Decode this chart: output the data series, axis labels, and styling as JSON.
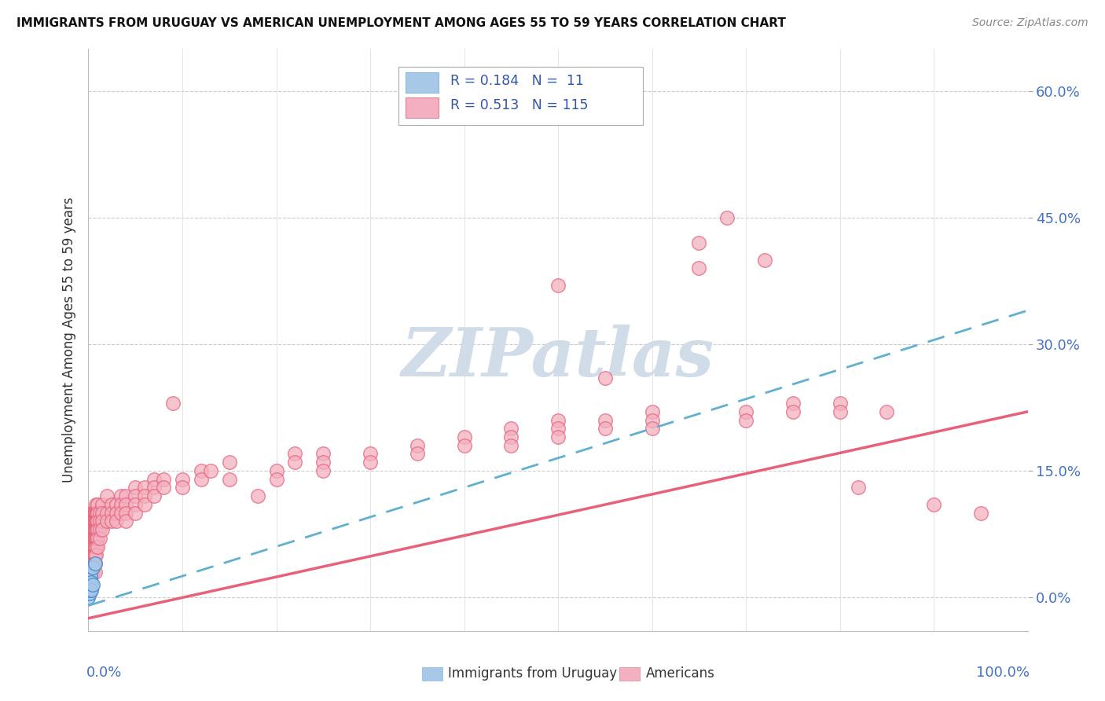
{
  "title": "IMMIGRANTS FROM URUGUAY VS AMERICAN UNEMPLOYMENT AMONG AGES 55 TO 59 YEARS CORRELATION CHART",
  "source": "Source: ZipAtlas.com",
  "ylabel": "Unemployment Among Ages 55 to 59 years",
  "ytick_values": [
    0,
    0.15,
    0.3,
    0.45,
    0.6
  ],
  "xlim": [
    0,
    1.0
  ],
  "ylim": [
    -0.04,
    0.65
  ],
  "color_uruguay": "#a8c8e8",
  "color_americans": "#f4b0c0",
  "trendline_uruguay_color": "#60b0d0",
  "trendline_americans_color": "#e8607a",
  "watermark_color": "#d0dce8",
  "scatter_uruguay": [
    [
      0.0,
      0.0
    ],
    [
      0.001,
      0.005
    ],
    [
      0.001,
      0.015
    ],
    [
      0.001,
      0.008
    ],
    [
      0.002,
      0.025
    ],
    [
      0.002,
      0.01
    ],
    [
      0.003,
      0.018
    ],
    [
      0.003,
      0.008
    ],
    [
      0.005,
      0.035
    ],
    [
      0.005,
      0.015
    ],
    [
      0.007,
      0.04
    ]
  ],
  "scatter_americans": [
    [
      0.0,
      0.09
    ],
    [
      0.001,
      0.08
    ],
    [
      0.001,
      0.07
    ],
    [
      0.001,
      0.06
    ],
    [
      0.001,
      0.05
    ],
    [
      0.001,
      0.04
    ],
    [
      0.001,
      0.03
    ],
    [
      0.001,
      0.02
    ],
    [
      0.002,
      0.09
    ],
    [
      0.002,
      0.08
    ],
    [
      0.002,
      0.07
    ],
    [
      0.002,
      0.06
    ],
    [
      0.002,
      0.05
    ],
    [
      0.002,
      0.04
    ],
    [
      0.002,
      0.03
    ],
    [
      0.003,
      0.1
    ],
    [
      0.003,
      0.09
    ],
    [
      0.003,
      0.08
    ],
    [
      0.003,
      0.07
    ],
    [
      0.003,
      0.06
    ],
    [
      0.003,
      0.05
    ],
    [
      0.003,
      0.04
    ],
    [
      0.003,
      0.03
    ],
    [
      0.004,
      0.09
    ],
    [
      0.004,
      0.08
    ],
    [
      0.004,
      0.07
    ],
    [
      0.004,
      0.06
    ],
    [
      0.004,
      0.05
    ],
    [
      0.004,
      0.04
    ],
    [
      0.005,
      0.1
    ],
    [
      0.005,
      0.09
    ],
    [
      0.005,
      0.08
    ],
    [
      0.005,
      0.07
    ],
    [
      0.005,
      0.06
    ],
    [
      0.005,
      0.05
    ],
    [
      0.005,
      0.04
    ],
    [
      0.005,
      0.03
    ],
    [
      0.006,
      0.1
    ],
    [
      0.006,
      0.09
    ],
    [
      0.006,
      0.08
    ],
    [
      0.006,
      0.07
    ],
    [
      0.006,
      0.06
    ],
    [
      0.006,
      0.05
    ],
    [
      0.006,
      0.04
    ],
    [
      0.007,
      0.1
    ],
    [
      0.007,
      0.09
    ],
    [
      0.007,
      0.08
    ],
    [
      0.007,
      0.07
    ],
    [
      0.007,
      0.06
    ],
    [
      0.007,
      0.05
    ],
    [
      0.007,
      0.04
    ],
    [
      0.007,
      0.03
    ],
    [
      0.008,
      0.11
    ],
    [
      0.008,
      0.1
    ],
    [
      0.008,
      0.09
    ],
    [
      0.008,
      0.08
    ],
    [
      0.008,
      0.07
    ],
    [
      0.008,
      0.06
    ],
    [
      0.008,
      0.05
    ],
    [
      0.009,
      0.1
    ],
    [
      0.009,
      0.09
    ],
    [
      0.009,
      0.08
    ],
    [
      0.009,
      0.07
    ],
    [
      0.01,
      0.11
    ],
    [
      0.01,
      0.1
    ],
    [
      0.01,
      0.09
    ],
    [
      0.01,
      0.08
    ],
    [
      0.01,
      0.07
    ],
    [
      0.01,
      0.06
    ],
    [
      0.012,
      0.1
    ],
    [
      0.012,
      0.09
    ],
    [
      0.012,
      0.08
    ],
    [
      0.012,
      0.07
    ],
    [
      0.015,
      0.11
    ],
    [
      0.015,
      0.1
    ],
    [
      0.015,
      0.09
    ],
    [
      0.015,
      0.08
    ],
    [
      0.02,
      0.1
    ],
    [
      0.02,
      0.09
    ],
    [
      0.02,
      0.12
    ],
    [
      0.025,
      0.11
    ],
    [
      0.025,
      0.1
    ],
    [
      0.025,
      0.09
    ],
    [
      0.03,
      0.11
    ],
    [
      0.03,
      0.1
    ],
    [
      0.03,
      0.09
    ],
    [
      0.035,
      0.12
    ],
    [
      0.035,
      0.11
    ],
    [
      0.035,
      0.1
    ],
    [
      0.04,
      0.12
    ],
    [
      0.04,
      0.11
    ],
    [
      0.04,
      0.1
    ],
    [
      0.04,
      0.09
    ],
    [
      0.05,
      0.13
    ],
    [
      0.05,
      0.12
    ],
    [
      0.05,
      0.11
    ],
    [
      0.05,
      0.1
    ],
    [
      0.06,
      0.13
    ],
    [
      0.06,
      0.12
    ],
    [
      0.06,
      0.11
    ],
    [
      0.07,
      0.14
    ],
    [
      0.07,
      0.13
    ],
    [
      0.07,
      0.12
    ],
    [
      0.08,
      0.14
    ],
    [
      0.08,
      0.13
    ],
    [
      0.09,
      0.23
    ],
    [
      0.1,
      0.14
    ],
    [
      0.1,
      0.13
    ],
    [
      0.12,
      0.15
    ],
    [
      0.12,
      0.14
    ],
    [
      0.13,
      0.15
    ],
    [
      0.15,
      0.16
    ],
    [
      0.15,
      0.14
    ],
    [
      0.18,
      0.12
    ],
    [
      0.2,
      0.15
    ],
    [
      0.2,
      0.14
    ],
    [
      0.22,
      0.17
    ],
    [
      0.22,
      0.16
    ],
    [
      0.25,
      0.17
    ],
    [
      0.25,
      0.16
    ],
    [
      0.25,
      0.15
    ],
    [
      0.3,
      0.17
    ],
    [
      0.3,
      0.16
    ],
    [
      0.35,
      0.18
    ],
    [
      0.35,
      0.17
    ],
    [
      0.4,
      0.19
    ],
    [
      0.4,
      0.18
    ],
    [
      0.45,
      0.2
    ],
    [
      0.45,
      0.19
    ],
    [
      0.45,
      0.18
    ],
    [
      0.5,
      0.21
    ],
    [
      0.5,
      0.2
    ],
    [
      0.5,
      0.19
    ],
    [
      0.55,
      0.21
    ],
    [
      0.55,
      0.2
    ],
    [
      0.6,
      0.22
    ],
    [
      0.6,
      0.21
    ],
    [
      0.6,
      0.2
    ],
    [
      0.65,
      0.42
    ],
    [
      0.65,
      0.39
    ],
    [
      0.68,
      0.45
    ],
    [
      0.7,
      0.22
    ],
    [
      0.7,
      0.21
    ],
    [
      0.72,
      0.4
    ],
    [
      0.75,
      0.23
    ],
    [
      0.75,
      0.22
    ],
    [
      0.8,
      0.23
    ],
    [
      0.8,
      0.22
    ],
    [
      0.82,
      0.13
    ],
    [
      0.85,
      0.22
    ],
    [
      0.9,
      0.11
    ],
    [
      0.95,
      0.1
    ],
    [
      0.5,
      0.37
    ],
    [
      0.55,
      0.26
    ]
  ],
  "trendline_am_slope": 0.245,
  "trendline_am_intercept": -0.025,
  "trendline_ur_slope": 0.35,
  "trendline_ur_intercept": -0.01
}
